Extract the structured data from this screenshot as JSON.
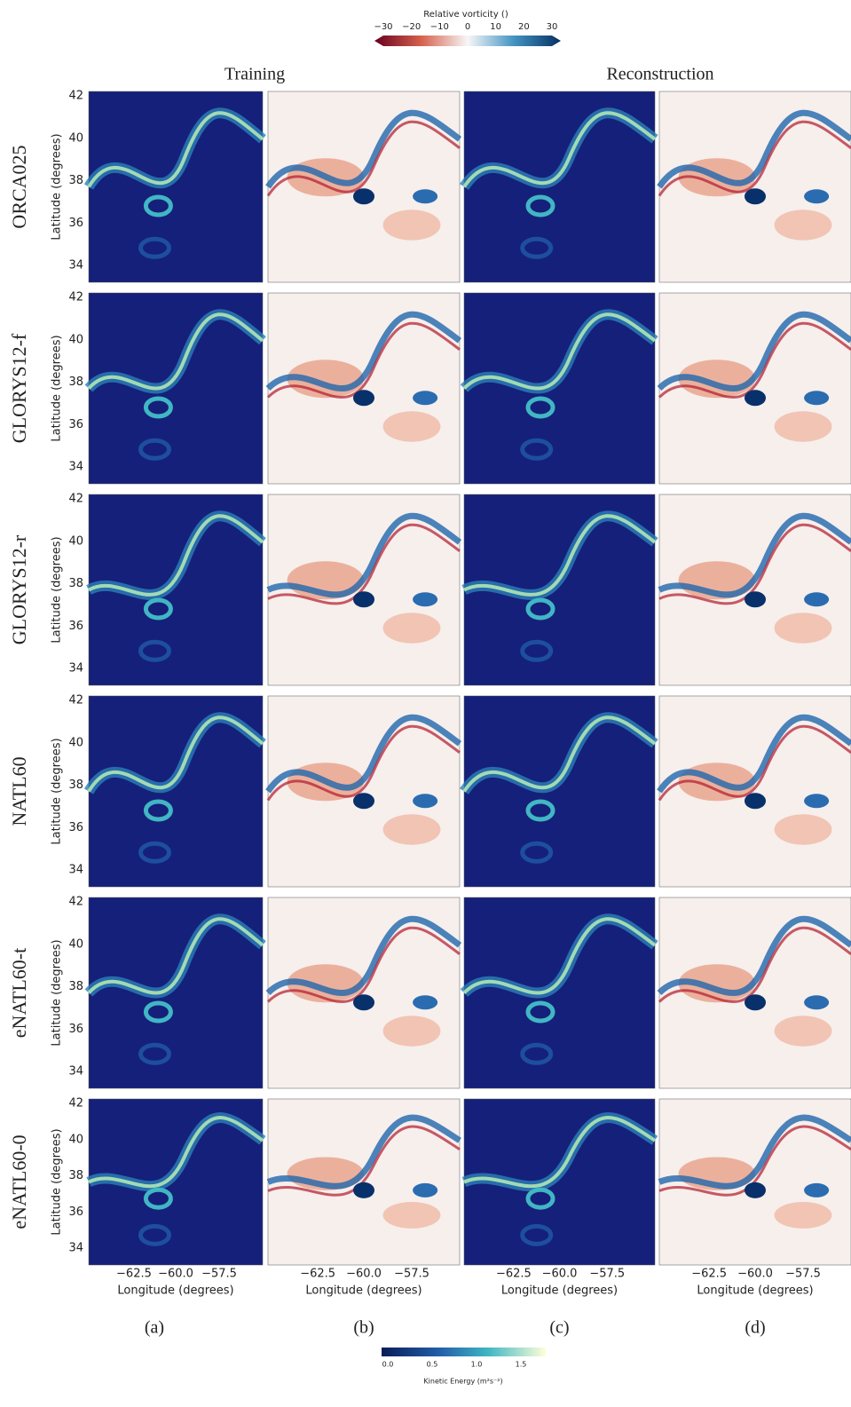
{
  "top_colorbar": {
    "title": "Relative vorticity ()",
    "ticks": [
      "−30",
      "−20",
      "−10",
      "0",
      "10",
      "20",
      "30"
    ]
  },
  "columns": {
    "training": "Training",
    "reconstruction": "Reconstruction"
  },
  "rows": [
    {
      "label": "ORCA025"
    },
    {
      "label": "GLORYS12-f"
    },
    {
      "label": "GLORYS12-r"
    },
    {
      "label": "NATL60"
    },
    {
      "label": "eNATL60-t"
    },
    {
      "label": "eNATL60-0"
    }
  ],
  "y_axis": {
    "label": "Latitude (degrees)",
    "ticks": [
      "42",
      "40",
      "38",
      "36",
      "34"
    ]
  },
  "x_axis": {
    "label": "Longitude (degrees)",
    "ticks": [
      "−62.5",
      "−60.0",
      "−57.5"
    ]
  },
  "panel_letters": [
    "(a)",
    "(b)",
    "(c)",
    "(d)"
  ],
  "bottom_colorbar": {
    "label": "Kinetic Energy (m²s⁻²)",
    "ticks": [
      "0.0",
      "0.5",
      "1.0",
      "1.5"
    ]
  }
}
